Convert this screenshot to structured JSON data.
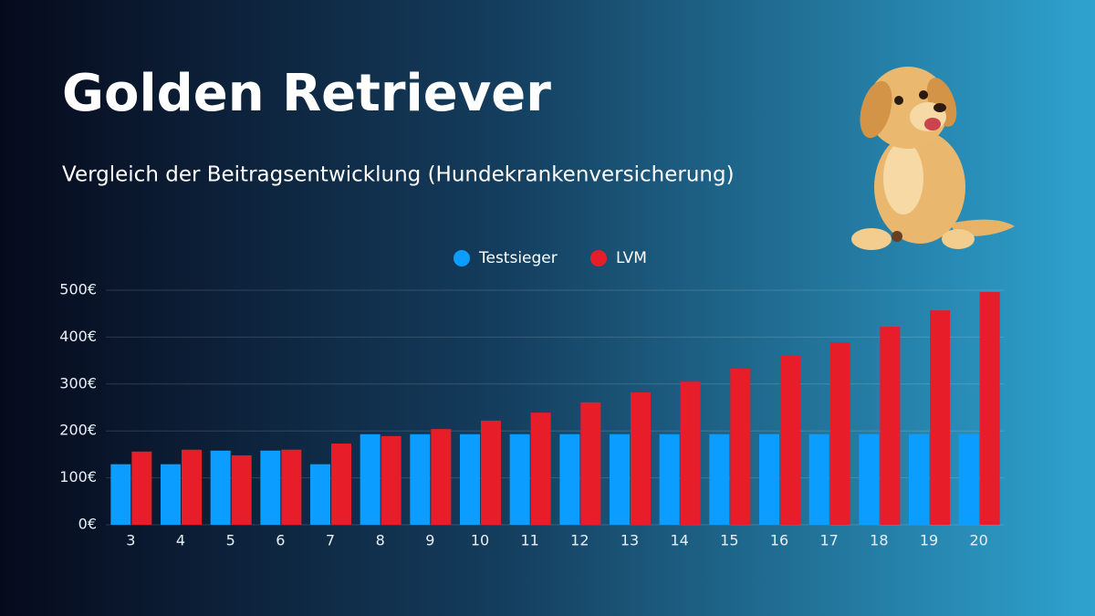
{
  "chart_data": {
    "type": "bar",
    "title": "Golden Retriever",
    "subtitle": "Vergleich der Beitragsentwicklung (Hundekrankenversicherung)",
    "categories": [
      "3",
      "4",
      "5",
      "6",
      "7",
      "8",
      "9",
      "10",
      "11",
      "12",
      "13",
      "14",
      "15",
      "16",
      "17",
      "18",
      "19",
      "20"
    ],
    "series": [
      {
        "name": "Testsieger",
        "color": "#0b9dff",
        "values": [
          129,
          129,
          158,
          158,
          129,
          193,
          193,
          193,
          193,
          193,
          193,
          193,
          193,
          193,
          193,
          193,
          193,
          193
        ]
      },
      {
        "name": "LVM",
        "color": "#e81d2a",
        "values": [
          156,
          160,
          148,
          160,
          173,
          189,
          204,
          222,
          239,
          261,
          282,
          305,
          333,
          360,
          389,
          422,
          457,
          496
        ]
      }
    ],
    "ylim": [
      0,
      500
    ],
    "yticks": [
      {
        "value": 0,
        "label": "0€"
      },
      {
        "value": 100,
        "label": "100€"
      },
      {
        "value": 200,
        "label": "200€"
      },
      {
        "value": 300,
        "label": "300€"
      },
      {
        "value": 400,
        "label": "400€"
      },
      {
        "value": 500,
        "label": "500€"
      }
    ],
    "grid": true,
    "legend": "top"
  }
}
